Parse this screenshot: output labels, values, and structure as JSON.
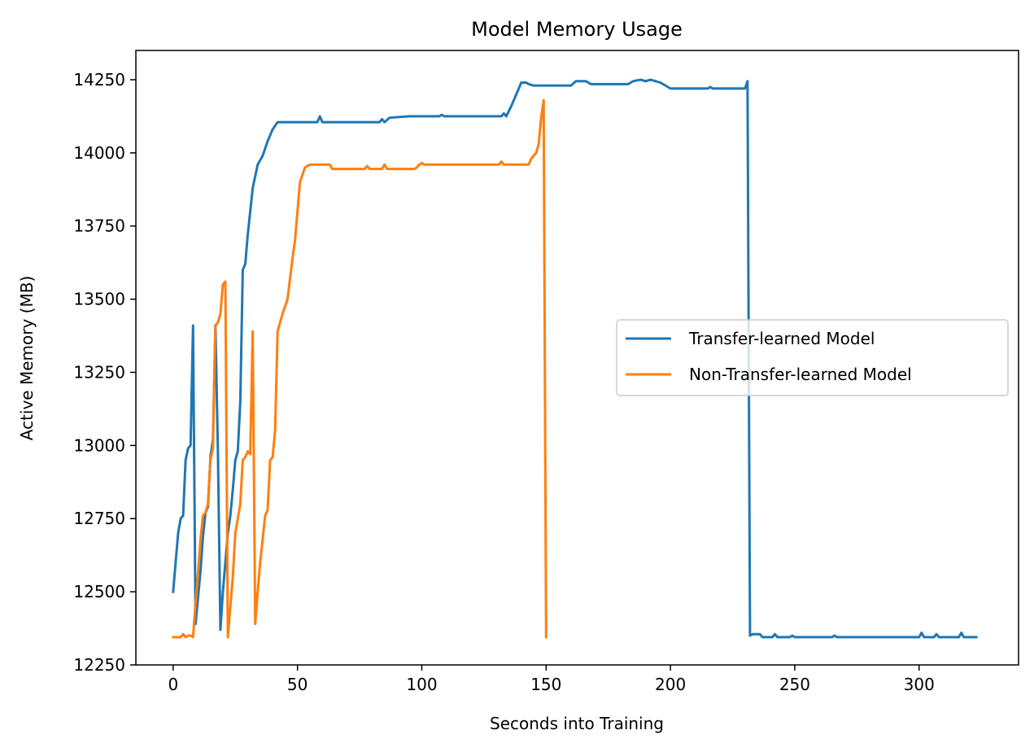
{
  "chart_data": {
    "type": "line",
    "title": "Model Memory Usage",
    "xlabel": "Seconds into Training",
    "ylabel": "Active Memory (MB)",
    "xlim": [
      -15,
      340
    ],
    "ylim": [
      12250,
      14350
    ],
    "xticks": [
      0,
      50,
      100,
      150,
      200,
      250,
      300
    ],
    "yticks": [
      12250,
      12500,
      12750,
      13000,
      13250,
      13500,
      13750,
      14000,
      14250
    ],
    "grid": false,
    "legend_position": "center-right",
    "series": [
      {
        "name": "Transfer-learned Model",
        "color": "#1f77b4",
        "points": [
          [
            0,
            12500
          ],
          [
            1,
            12600
          ],
          [
            2,
            12700
          ],
          [
            3,
            12750
          ],
          [
            4,
            12760
          ],
          [
            5,
            12950
          ],
          [
            6,
            12990
          ],
          [
            7,
            13000
          ],
          [
            8,
            13410
          ],
          [
            9,
            12390
          ],
          [
            10,
            12480
          ],
          [
            11,
            12570
          ],
          [
            12,
            12690
          ],
          [
            13,
            12770
          ],
          [
            14,
            12790
          ],
          [
            15,
            12960
          ],
          [
            16,
            13020
          ],
          [
            17,
            13410
          ],
          [
            18,
            12980
          ],
          [
            19,
            12370
          ],
          [
            20,
            12500
          ],
          [
            21,
            12600
          ],
          [
            22,
            12700
          ],
          [
            23,
            12760
          ],
          [
            24,
            12850
          ],
          [
            25,
            12950
          ],
          [
            26,
            12980
          ],
          [
            27,
            13150
          ],
          [
            28,
            13600
          ],
          [
            29,
            13620
          ],
          [
            30,
            13720
          ],
          [
            32,
            13880
          ],
          [
            34,
            13960
          ],
          [
            36,
            13990
          ],
          [
            38,
            14040
          ],
          [
            40,
            14080
          ],
          [
            42,
            14105
          ],
          [
            50,
            14105
          ],
          [
            58,
            14105
          ],
          [
            59,
            14125
          ],
          [
            60,
            14105
          ],
          [
            70,
            14105
          ],
          [
            83,
            14105
          ],
          [
            84,
            14115
          ],
          [
            85,
            14105
          ],
          [
            87,
            14120
          ],
          [
            95,
            14125
          ],
          [
            107,
            14125
          ],
          [
            108,
            14130
          ],
          [
            109,
            14125
          ],
          [
            132,
            14125
          ],
          [
            133,
            14135
          ],
          [
            134,
            14125
          ],
          [
            136,
            14160
          ],
          [
            138,
            14200
          ],
          [
            140,
            14240
          ],
          [
            142,
            14240
          ],
          [
            143,
            14235
          ],
          [
            145,
            14230
          ],
          [
            160,
            14230
          ],
          [
            162,
            14245
          ],
          [
            166,
            14245
          ],
          [
            168,
            14235
          ],
          [
            183,
            14235
          ],
          [
            185,
            14245
          ],
          [
            188,
            14250
          ],
          [
            190,
            14245
          ],
          [
            192,
            14250
          ],
          [
            196,
            14240
          ],
          [
            198,
            14230
          ],
          [
            200,
            14220
          ],
          [
            215,
            14220
          ],
          [
            216,
            14225
          ],
          [
            217,
            14220
          ],
          [
            230,
            14220
          ],
          [
            231,
            14245
          ],
          [
            232,
            12350
          ],
          [
            233,
            12355
          ],
          [
            236,
            12355
          ],
          [
            237,
            12345
          ],
          [
            241,
            12345
          ],
          [
            242,
            12355
          ],
          [
            243,
            12345
          ],
          [
            248,
            12345
          ],
          [
            249,
            12350
          ],
          [
            250,
            12345
          ],
          [
            265,
            12345
          ],
          [
            266,
            12350
          ],
          [
            267,
            12345
          ],
          [
            300,
            12345
          ],
          [
            301,
            12360
          ],
          [
            302,
            12345
          ],
          [
            306,
            12345
          ],
          [
            307,
            12355
          ],
          [
            308,
            12345
          ],
          [
            316,
            12345
          ],
          [
            317,
            12360
          ],
          [
            318,
            12345
          ],
          [
            323,
            12345
          ]
        ]
      },
      {
        "name": "Non-Transfer-learned Model",
        "color": "#ff7f0e",
        "points": [
          [
            0,
            12345
          ],
          [
            3,
            12345
          ],
          [
            4,
            12355
          ],
          [
            5,
            12345
          ],
          [
            6,
            12350
          ],
          [
            7,
            12350
          ],
          [
            8,
            12345
          ],
          [
            9,
            12460
          ],
          [
            10,
            12560
          ],
          [
            11,
            12680
          ],
          [
            12,
            12760
          ],
          [
            13,
            12770
          ],
          [
            14,
            12800
          ],
          [
            15,
            12950
          ],
          [
            16,
            12990
          ],
          [
            17,
            13410
          ],
          [
            18,
            13420
          ],
          [
            19,
            13450
          ],
          [
            20,
            13550
          ],
          [
            21,
            13560
          ],
          [
            22,
            12345
          ],
          [
            23,
            12450
          ],
          [
            24,
            12550
          ],
          [
            25,
            12700
          ],
          [
            26,
            12750
          ],
          [
            27,
            12800
          ],
          [
            28,
            12950
          ],
          [
            29,
            12960
          ],
          [
            30,
            12980
          ],
          [
            31,
            12970
          ],
          [
            32,
            13390
          ],
          [
            33,
            12390
          ],
          [
            34,
            12500
          ],
          [
            35,
            12600
          ],
          [
            36,
            12680
          ],
          [
            37,
            12760
          ],
          [
            38,
            12780
          ],
          [
            39,
            12950
          ],
          [
            40,
            12960
          ],
          [
            41,
            13050
          ],
          [
            42,
            13390
          ],
          [
            43,
            13420
          ],
          [
            44,
            13450
          ],
          [
            46,
            13500
          ],
          [
            48,
            13640
          ],
          [
            49,
            13700
          ],
          [
            51,
            13900
          ],
          [
            53,
            13950
          ],
          [
            55,
            13960
          ],
          [
            63,
            13960
          ],
          [
            64,
            13945
          ],
          [
            77,
            13945
          ],
          [
            78,
            13955
          ],
          [
            79,
            13945
          ],
          [
            84,
            13945
          ],
          [
            85,
            13960
          ],
          [
            86,
            13945
          ],
          [
            97,
            13945
          ],
          [
            98,
            13950
          ],
          [
            99,
            13960
          ],
          [
            100,
            13965
          ],
          [
            101,
            13960
          ],
          [
            108,
            13960
          ],
          [
            131,
            13960
          ],
          [
            132,
            13970
          ],
          [
            133,
            13960
          ],
          [
            143,
            13960
          ],
          [
            144,
            13980
          ],
          [
            146,
            14000
          ],
          [
            147,
            14030
          ],
          [
            148,
            14120
          ],
          [
            149,
            14180
          ],
          [
            150,
            12345
          ]
        ]
      }
    ]
  }
}
